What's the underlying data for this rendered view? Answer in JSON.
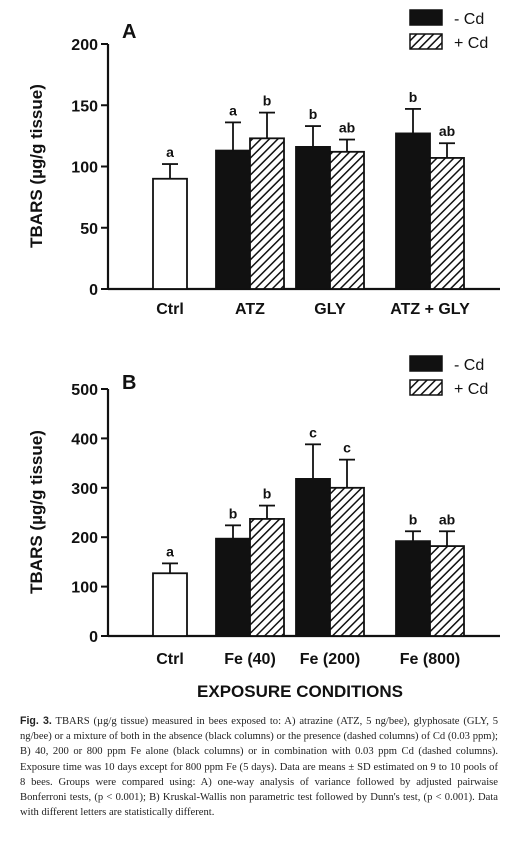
{
  "xlabel_shared": "EXPOSURE CONDITIONS",
  "legend": {
    "minus_cd": "- Cd",
    "plus_cd": "+ Cd"
  },
  "chart_data": [
    {
      "type": "bar",
      "panel": "A",
      "ylabel": "TBARS (µg/g tissue)",
      "ylim": [
        0,
        200
      ],
      "yticks": [
        0,
        50,
        100,
        150,
        200
      ],
      "categories": [
        "Ctrl",
        "ATZ",
        "GLY",
        "ATZ + GLY"
      ],
      "series": [
        {
          "name": "- Cd",
          "pattern": "solid",
          "values": [
            90,
            113,
            116,
            127
          ],
          "sd": [
            12,
            23,
            17,
            20
          ],
          "letters": [
            "a",
            "a",
            "b",
            "b"
          ]
        },
        {
          "name": "+ Cd",
          "pattern": "hatched",
          "values": [
            null,
            123,
            112,
            107
          ],
          "sd": [
            null,
            21,
            10,
            12
          ],
          "letters": [
            null,
            "b",
            "ab",
            "ab"
          ]
        }
      ],
      "ctrl_index": 0
    },
    {
      "type": "bar",
      "panel": "B",
      "ylabel": "TBARS (µg/g tissue)",
      "ylim": [
        0,
        500
      ],
      "yticks": [
        0,
        100,
        200,
        300,
        400,
        500
      ],
      "categories": [
        "Ctrl",
        "Fe (40)",
        "Fe (200)",
        "Fe (800)"
      ],
      "series": [
        {
          "name": "- Cd",
          "pattern": "solid",
          "values": [
            127,
            197,
            318,
            192
          ],
          "sd": [
            20,
            27,
            70,
            20
          ],
          "letters": [
            "a",
            "b",
            "c",
            "b"
          ]
        },
        {
          "name": "+ Cd",
          "pattern": "hatched",
          "values": [
            null,
            237,
            300,
            182
          ],
          "sd": [
            null,
            27,
            57,
            30
          ],
          "letters": [
            null,
            "b",
            "c",
            "ab"
          ]
        }
      ],
      "ctrl_index": 0
    }
  ],
  "caption": {
    "label": "Fig. 3.",
    "text": "TBARS (µg/g tissue) measured in bees exposed to: A) atrazine (ATZ, 5 ng/bee), glyphosate (GLY, 5 ng/bee) or a mixture of both in the absence (black columns) or the presence (dashed columns) of Cd (0.03 ppm); B) 40, 200 or 800 ppm Fe alone (black columns) or in combination with 0.03 ppm Cd (dashed columns). Exposure time was 10 days except for 800 ppm Fe (5 days). Data are means ± SD estimated on 9 to 10 pools of 8 bees. Groups were compared using: A) one-way analysis of variance followed by adjusted pairwaise Bonferroni tests, (p < 0.001); B) Kruskal-Wallis non parametric test followed by Dunn's test, (p < 0.001). Data with different letters are statistically different."
  }
}
